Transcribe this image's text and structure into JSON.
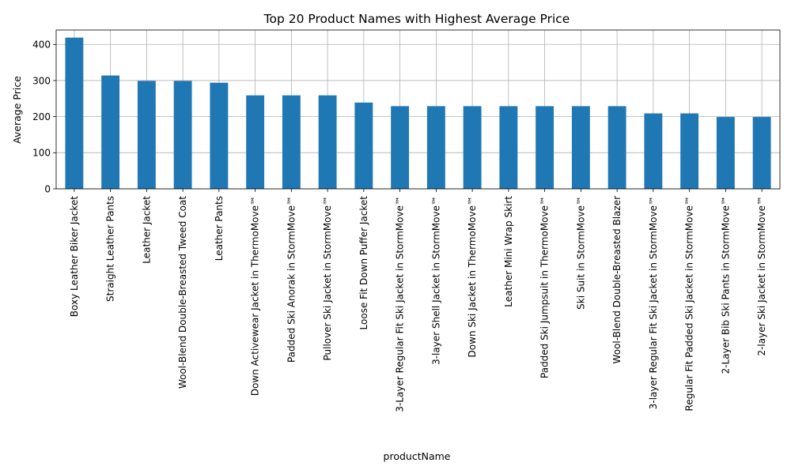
{
  "chart_data": {
    "type": "bar",
    "title": "Top 20 Product Names with Highest Average Price",
    "xlabel": "productName",
    "ylabel": "Average Price",
    "ylim": [
      0,
      440
    ],
    "yticks": [
      0,
      100,
      200,
      300,
      400
    ],
    "grid": true,
    "bar_color": "#1f77b4",
    "categories": [
      "Boxy Leather Biker Jacket",
      "Straight Leather Pants",
      "Leather Jacket",
      "Wool-Blend Double-Breasted Tweed Coat",
      "Leather Pants",
      "Down Activewear Jacket in ThermoMove™",
      "Padded Ski Anorak in StormMove™",
      "Pullover Ski Jacket in StormMove™",
      "Loose Fit Down Puffer Jacket",
      "3-Layer Regular Fit Ski Jacket in StormMove™",
      "3-layer Shell Jacket in StormMove™",
      "Down Ski Jacket in ThermoMove™",
      "Leather Mini Wrap Skirt",
      "Padded Ski Jumpsuit in ThermoMove™",
      "Ski Suit in StormMove™",
      "Wool-Blend Double-Breasted Blazer",
      "3-layer Regular Fit Ski Jacket in StormMove™",
      "Regular Fit Padded Ski Jacket in StormMove™",
      "2-Layer Bib Ski Pants in StormMove™",
      "2-layer Ski Jacket in StormMove™"
    ],
    "values": [
      419,
      314,
      299,
      299,
      294,
      259,
      259,
      259,
      239,
      229,
      229,
      229,
      229,
      229,
      229,
      229,
      209,
      209,
      199,
      199
    ]
  }
}
